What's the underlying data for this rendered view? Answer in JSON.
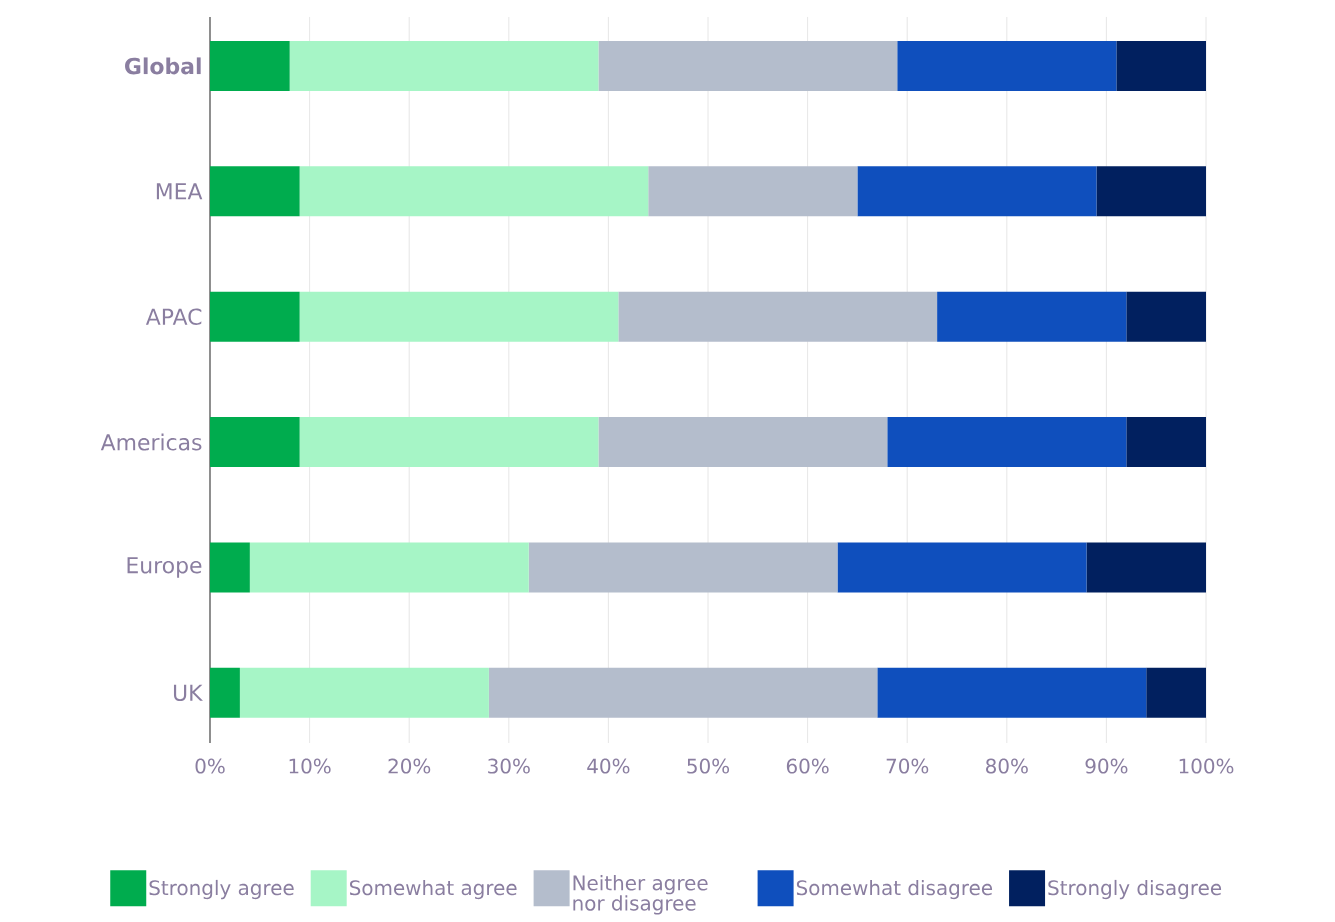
{
  "chart_data": {
    "type": "bar",
    "orientation": "horizontal",
    "stacked": true,
    "categories": [
      "Global",
      "MEA",
      "APAC",
      "Americas",
      "Europe",
      "UK"
    ],
    "series": [
      {
        "name": "Strongly agree",
        "color": "#00ac4e",
        "values": [
          8,
          9,
          9,
          9,
          4,
          3
        ]
      },
      {
        "name": "Somewhat agree",
        "color": "#a6f5c6",
        "values": [
          31,
          35,
          32,
          30,
          28,
          25
        ]
      },
      {
        "name": "Neither agree nor disagree",
        "color": "#b4bdcc",
        "values": [
          30,
          21,
          32,
          29,
          31,
          39
        ]
      },
      {
        "name": "Somewhat disagree",
        "color": "#0f4fbd",
        "values": [
          22,
          24,
          19,
          24,
          25,
          27
        ]
      },
      {
        "name": "Strongly disagree",
        "color": "#01205f",
        "values": [
          9,
          11,
          8,
          8,
          12,
          6
        ]
      }
    ],
    "xlim": [
      0,
      100
    ],
    "xticks": [
      {
        "value": 0,
        "label": "0%"
      },
      {
        "value": 10,
        "label": "10%"
      },
      {
        "value": 20,
        "label": "20%"
      },
      {
        "value": 30,
        "label": "30%"
      },
      {
        "value": 40,
        "label": "40%"
      },
      {
        "value": 50,
        "label": "50%"
      },
      {
        "value": 60,
        "label": "60%"
      },
      {
        "value": 70,
        "label": "70%"
      },
      {
        "value": 80,
        "label": "80%"
      },
      {
        "value": 90,
        "label": "90%"
      },
      {
        "value": 100,
        "label": "100%"
      }
    ],
    "grid": "x",
    "legend": "bottom"
  }
}
